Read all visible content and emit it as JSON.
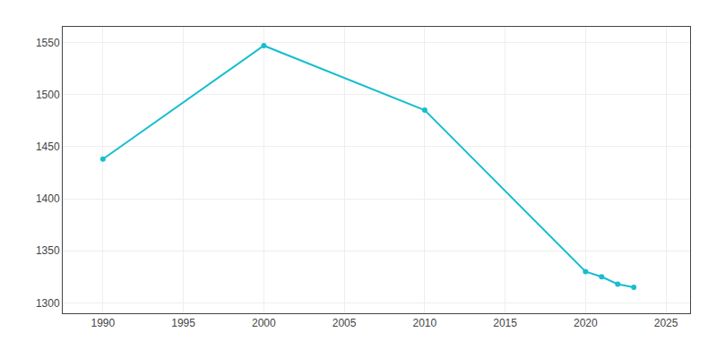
{
  "chart_data": {
    "type": "line",
    "x": [
      1990,
      2000,
      2010,
      2020,
      2021,
      2022,
      2023
    ],
    "values": [
      1438,
      1547,
      1485,
      1330,
      1325,
      1318,
      1315
    ],
    "color": "#17becf",
    "marker": "circle",
    "xlim": [
      1987.5,
      2026.5
    ],
    "ylim": [
      1290,
      1565
    ],
    "xticks": [
      1990,
      1995,
      2000,
      2005,
      2010,
      2015,
      2020,
      2025
    ],
    "yticks": [
      1300,
      1350,
      1400,
      1450,
      1500,
      1550
    ],
    "grid": true
  }
}
